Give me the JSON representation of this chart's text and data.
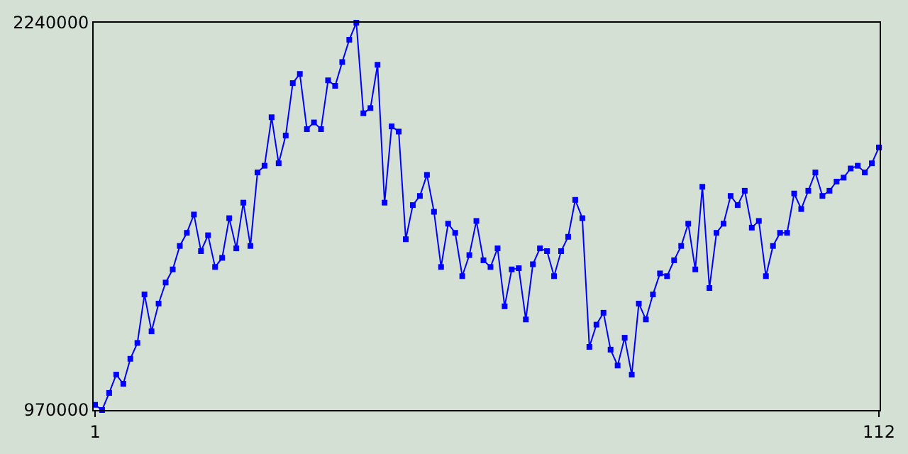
{
  "chart_data": {
    "type": "line",
    "x": [
      1,
      2,
      3,
      4,
      5,
      6,
      7,
      8,
      9,
      10,
      11,
      12,
      13,
      14,
      15,
      16,
      17,
      18,
      19,
      20,
      21,
      22,
      23,
      24,
      25,
      26,
      27,
      28,
      29,
      30,
      31,
      32,
      33,
      34,
      35,
      36,
      37,
      38,
      39,
      40,
      41,
      42,
      43,
      44,
      45,
      46,
      47,
      48,
      49,
      50,
      51,
      52,
      53,
      54,
      55,
      56,
      57,
      58,
      59,
      60,
      61,
      62,
      63,
      64,
      65,
      66,
      67,
      68,
      69,
      70,
      71,
      72,
      73,
      74,
      75,
      76,
      77,
      78,
      79,
      80,
      81,
      82,
      83,
      84,
      85,
      86,
      87,
      88,
      89,
      90,
      91,
      92,
      93,
      94,
      95,
      96,
      97,
      98,
      99,
      100,
      101,
      102,
      103,
      104,
      105,
      106,
      107,
      108,
      109,
      110,
      111,
      112
    ],
    "series": [
      {
        "color": "#0000ff",
        "values": [
          987000,
          970000,
          1026000,
          1086000,
          1056000,
          1138000,
          1190000,
          1349000,
          1228000,
          1319000,
          1388000,
          1431000,
          1508000,
          1551000,
          1611000,
          1491000,
          1543000,
          1439000,
          1469000,
          1599000,
          1500000,
          1650000,
          1508000,
          1749000,
          1771000,
          1930000,
          1779000,
          1870000,
          2042000,
          2072000,
          1891000,
          1913000,
          1891000,
          2051000,
          2033000,
          2111000,
          2184000,
          2240000,
          1943000,
          1960000,
          2102000,
          1650000,
          1900000,
          1883000,
          1530000,
          1642000,
          1672000,
          1741000,
          1620000,
          1439000,
          1581000,
          1551000,
          1409000,
          1478000,
          1590000,
          1461000,
          1439000,
          1500000,
          1310000,
          1431000,
          1435000,
          1267000,
          1448000,
          1500000,
          1491000,
          1409000,
          1491000,
          1538000,
          1659000,
          1599000,
          1177000,
          1250000,
          1289000,
          1168000,
          1116000,
          1207000,
          1086000,
          1319000,
          1267000,
          1349000,
          1418000,
          1409000,
          1461000,
          1508000,
          1581000,
          1431000,
          1702000,
          1370000,
          1551000,
          1581000,
          1672000,
          1642000,
          1689000,
          1568000,
          1590000,
          1409000,
          1508000,
          1551000,
          1551000,
          1680000,
          1629000,
          1689000,
          1749000,
          1672000,
          1689000,
          1719000,
          1732000,
          1762000,
          1771000,
          1749000,
          1779000,
          1831000
        ]
      }
    ],
    "xlim": [
      0.8,
      112.1
    ],
    "xticks": [
      1,
      112
    ],
    "ylim": [
      970000,
      2240000
    ],
    "yticks": [
      970000,
      2240000
    ],
    "marker": "square",
    "line_style": "solid",
    "legend": false
  }
}
